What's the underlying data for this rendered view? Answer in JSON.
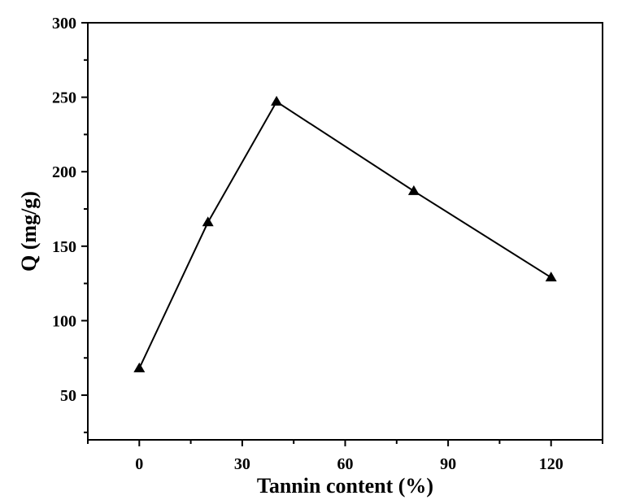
{
  "chart_data": {
    "type": "line",
    "title": "",
    "xlabel": "Tannin content (%)",
    "ylabel": "Q (mg/g)",
    "xlim": [
      -15,
      135
    ],
    "ylim": [
      20,
      300
    ],
    "x_ticks": [
      0,
      30,
      60,
      90,
      120
    ],
    "x_tick_labels": [
      "0",
      "30",
      "60",
      "90",
      "120"
    ],
    "x_minor_ticks": [
      -15,
      15,
      45,
      75,
      105,
      135
    ],
    "y_ticks": [
      50,
      100,
      150,
      200,
      250,
      300
    ],
    "y_tick_labels": [
      "50",
      "100",
      "150",
      "200",
      "250",
      "300"
    ],
    "y_minor_ticks": [
      25,
      75,
      125,
      175,
      225,
      275
    ],
    "grid": false,
    "legend": "none",
    "series": [
      {
        "marker": "triangle",
        "color": "#000000",
        "x": [
          0,
          20,
          40,
          80,
          120
        ],
        "y": [
          68,
          166,
          247,
          187,
          129
        ]
      }
    ]
  }
}
